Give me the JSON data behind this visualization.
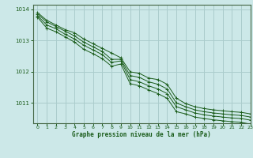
{
  "title": "",
  "xlabel": "Graphe pression niveau de la mer (hPa)",
  "ylabel": "",
  "bg_color": "#cce8e8",
  "grid_color": "#aacccc",
  "line_color": "#1a5c1a",
  "marker_color": "#1a5c1a",
  "xlim": [
    -0.5,
    23
  ],
  "ylim": [
    1010.35,
    1014.15
  ],
  "yticks": [
    1011,
    1012,
    1013,
    1014
  ],
  "xticks": [
    0,
    1,
    2,
    3,
    4,
    5,
    6,
    7,
    8,
    9,
    10,
    11,
    12,
    13,
    14,
    15,
    16,
    17,
    18,
    19,
    20,
    21,
    22,
    23
  ],
  "series": [
    [
      1013.9,
      1013.65,
      1013.5,
      1013.35,
      1013.25,
      1013.05,
      1012.9,
      1012.75,
      1012.6,
      1012.45,
      1012.0,
      1011.95,
      1011.8,
      1011.75,
      1011.6,
      1011.15,
      1010.98,
      1010.88,
      1010.82,
      1010.78,
      1010.75,
      1010.72,
      1010.7,
      1010.65
    ],
    [
      1013.85,
      1013.6,
      1013.45,
      1013.3,
      1013.15,
      1012.95,
      1012.8,
      1012.65,
      1012.4,
      1012.4,
      1011.88,
      1011.82,
      1011.68,
      1011.6,
      1011.45,
      1011.0,
      1010.88,
      1010.78,
      1010.72,
      1010.68,
      1010.65,
      1010.62,
      1010.6,
      1010.55
    ],
    [
      1013.8,
      1013.5,
      1013.38,
      1013.2,
      1013.05,
      1012.85,
      1012.7,
      1012.55,
      1012.3,
      1012.35,
      1011.75,
      1011.68,
      1011.55,
      1011.45,
      1011.3,
      1010.88,
      1010.78,
      1010.68,
      1010.62,
      1010.58,
      1010.55,
      1010.52,
      1010.5,
      1010.45
    ],
    [
      1013.75,
      1013.4,
      1013.28,
      1013.12,
      1012.95,
      1012.72,
      1012.58,
      1012.42,
      1012.18,
      1012.25,
      1011.62,
      1011.55,
      1011.42,
      1011.3,
      1011.15,
      1010.72,
      1010.65,
      1010.55,
      1010.5,
      1010.46,
      1010.43,
      1010.4,
      1010.38,
      1010.32
    ]
  ]
}
